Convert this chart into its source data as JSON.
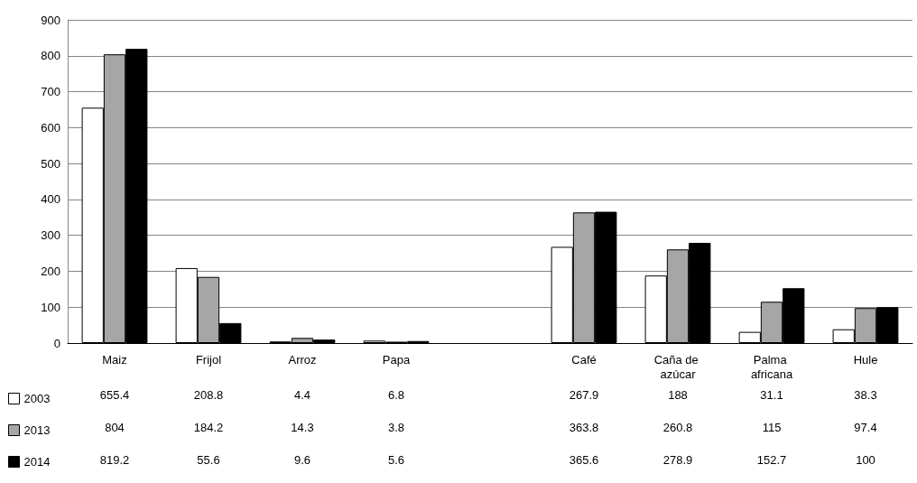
{
  "chart_data": {
    "type": "bar",
    "categories": [
      "Maiz",
      "Frijol",
      "Arroz",
      "Papa",
      null,
      "Café",
      "Caña de azúcar",
      "Palma africana",
      "Hule"
    ],
    "series": [
      {
        "name": "2003",
        "color": "#ffffff",
        "values": [
          655.4,
          208.8,
          4.4,
          6.8,
          null,
          267.9,
          188,
          31.1,
          38.3
        ]
      },
      {
        "name": "2013",
        "color": "#a6a6a6",
        "values": [
          804,
          184.2,
          14.3,
          3.8,
          null,
          363.8,
          260.8,
          115,
          97.4
        ]
      },
      {
        "name": "2014",
        "color": "#000000",
        "values": [
          819.2,
          55.6,
          9.6,
          5.6,
          null,
          365.6,
          278.9,
          152.7,
          100
        ]
      }
    ],
    "ylim": [
      0,
      900
    ],
    "yticks": [
      0,
      100,
      200,
      300,
      400,
      500,
      600,
      700,
      800,
      900
    ],
    "grid": "y",
    "legend": "bottom left",
    "data_labels": true
  }
}
